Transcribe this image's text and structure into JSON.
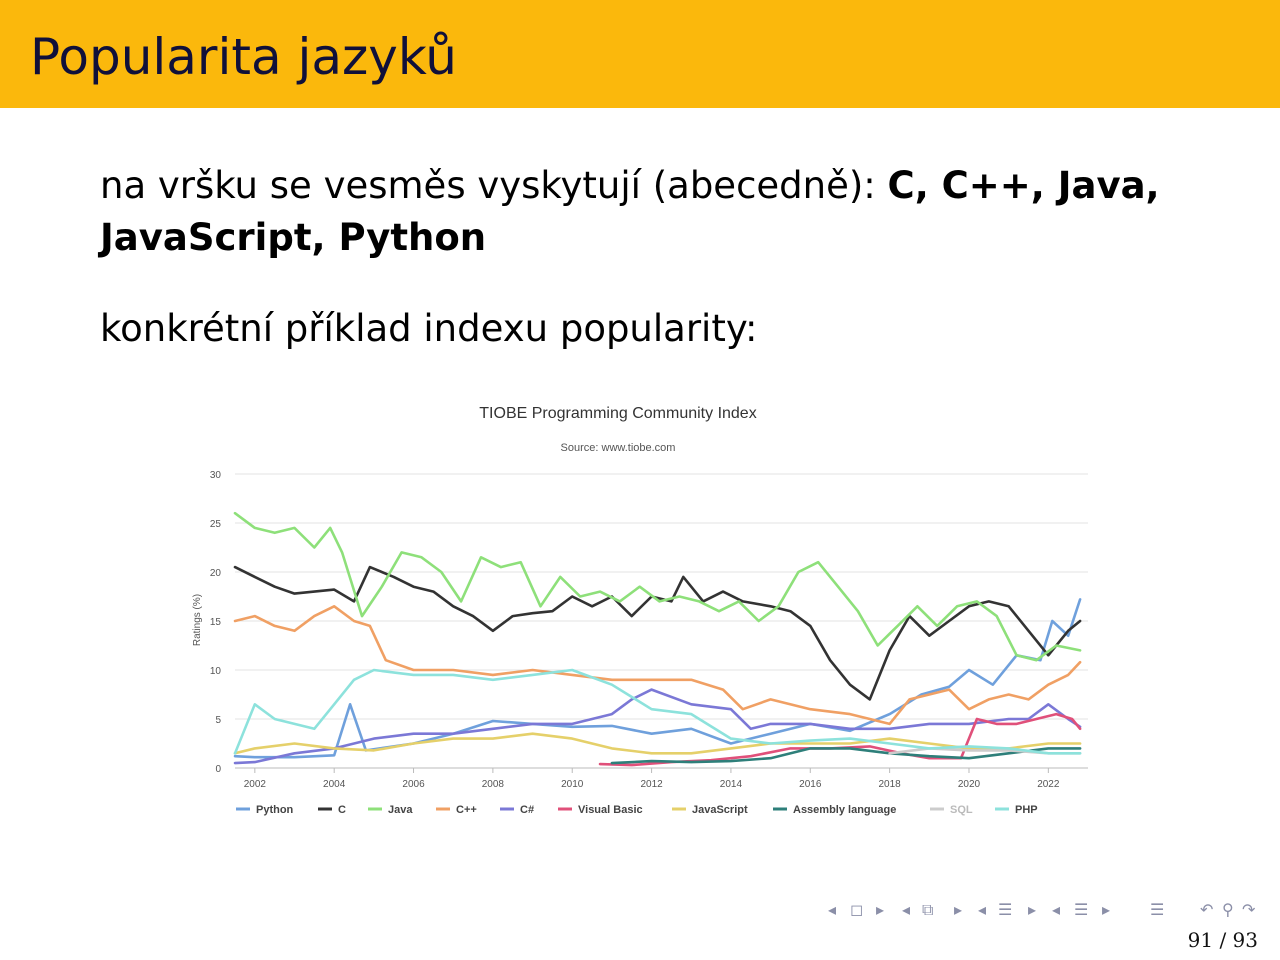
{
  "slide": {
    "title": "Popularita jazyků",
    "para1_plain": "na vršku se vesměs vyskytují (abecedně): ",
    "para1_bold1": "C, C++, Java,",
    "para1_bold2": "JavaScript, Python",
    "para2": "konkrétní příklad indexu popularity:",
    "page": "91 / 93",
    "header_color": "#fbb80c"
  },
  "navigation": {
    "icons": [
      "nav-prev-icon",
      "frame-icon",
      "nav-next-icon",
      "nav-prev-icon",
      "subsection-icon",
      "nav-next-icon",
      "nav-prev-icon",
      "section-icon",
      "nav-next-icon",
      "nav-prev-icon",
      "document-icon",
      "nav-next-icon",
      "toc-icon",
      "back-icon",
      "search-icon",
      "forward-icon"
    ]
  },
  "chart_data": {
    "type": "line",
    "title": "TIOBE Programming Community Index",
    "subtitle": "Source: www.tiobe.com",
    "ylabel": "Ratings (%)",
    "xlabel": "",
    "xlim": [
      2001.5,
      2023.0
    ],
    "ylim": [
      0,
      30
    ],
    "yticks": [
      0,
      5,
      10,
      15,
      20,
      25,
      30
    ],
    "xticks": [
      2002,
      2004,
      2006,
      2008,
      2010,
      2012,
      2014,
      2016,
      2018,
      2020,
      2022
    ],
    "grid": true,
    "legend": "bottom",
    "series": [
      {
        "name": "Python",
        "color": "#6fa0dc",
        "points": [
          [
            2001.5,
            1.2
          ],
          [
            2002,
            1.1
          ],
          [
            2003,
            1.1
          ],
          [
            2004,
            1.3
          ],
          [
            2004.4,
            6.5
          ],
          [
            2004.8,
            1.8
          ],
          [
            2006,
            2.5
          ],
          [
            2007,
            3.5
          ],
          [
            2008,
            4.8
          ],
          [
            2009,
            4.5
          ],
          [
            2010,
            4.2
          ],
          [
            2011,
            4.3
          ],
          [
            2012,
            3.5
          ],
          [
            2013,
            4.0
          ],
          [
            2014,
            2.5
          ],
          [
            2015,
            3.5
          ],
          [
            2016,
            4.5
          ],
          [
            2017,
            3.8
          ],
          [
            2018,
            5.5
          ],
          [
            2018.8,
            7.5
          ],
          [
            2019.5,
            8.3
          ],
          [
            2020,
            10.0
          ],
          [
            2020.6,
            8.5
          ],
          [
            2021.2,
            11.5
          ],
          [
            2021.8,
            11.0
          ],
          [
            2022.1,
            15.0
          ],
          [
            2022.5,
            13.5
          ],
          [
            2022.8,
            17.2
          ]
        ]
      },
      {
        "name": "C",
        "color": "#333333",
        "points": [
          [
            2001.5,
            20.5
          ],
          [
            2002,
            19.5
          ],
          [
            2002.5,
            18.5
          ],
          [
            2003,
            17.8
          ],
          [
            2003.5,
            18.0
          ],
          [
            2004,
            18.2
          ],
          [
            2004.5,
            17.0
          ],
          [
            2004.9,
            20.5
          ],
          [
            2005.5,
            19.5
          ],
          [
            2006,
            18.5
          ],
          [
            2006.5,
            18.0
          ],
          [
            2007,
            16.5
          ],
          [
            2007.5,
            15.5
          ],
          [
            2008,
            14.0
          ],
          [
            2008.5,
            15.5
          ],
          [
            2009,
            15.8
          ],
          [
            2009.5,
            16.0
          ],
          [
            2010,
            17.5
          ],
          [
            2010.5,
            16.5
          ],
          [
            2011,
            17.5
          ],
          [
            2011.5,
            15.5
          ],
          [
            2012,
            17.5
          ],
          [
            2012.5,
            17.0
          ],
          [
            2012.8,
            19.5
          ],
          [
            2013.3,
            17.0
          ],
          [
            2013.8,
            18.0
          ],
          [
            2014.3,
            17.0
          ],
          [
            2015,
            16.5
          ],
          [
            2015.5,
            16.0
          ],
          [
            2016,
            14.5
          ],
          [
            2016.5,
            11.0
          ],
          [
            2017,
            8.5
          ],
          [
            2017.5,
            7.0
          ],
          [
            2018,
            12.0
          ],
          [
            2018.5,
            15.5
          ],
          [
            2019,
            13.5
          ],
          [
            2019.5,
            15.0
          ],
          [
            2020,
            16.5
          ],
          [
            2020.5,
            17.0
          ],
          [
            2021,
            16.5
          ],
          [
            2021.5,
            14.0
          ],
          [
            2022,
            11.5
          ],
          [
            2022.5,
            14.0
          ],
          [
            2022.8,
            15.0
          ]
        ]
      },
      {
        "name": "Java",
        "color": "#8ee07a",
        "points": [
          [
            2001.5,
            26.0
          ],
          [
            2002,
            24.5
          ],
          [
            2002.5,
            24.0
          ],
          [
            2003,
            24.5
          ],
          [
            2003.5,
            22.5
          ],
          [
            2003.9,
            24.5
          ],
          [
            2004.2,
            22.0
          ],
          [
            2004.7,
            15.5
          ],
          [
            2005.2,
            18.5
          ],
          [
            2005.7,
            22.0
          ],
          [
            2006.2,
            21.5
          ],
          [
            2006.7,
            20.0
          ],
          [
            2007.2,
            17.0
          ],
          [
            2007.7,
            21.5
          ],
          [
            2008.2,
            20.5
          ],
          [
            2008.7,
            21.0
          ],
          [
            2009.2,
            16.5
          ],
          [
            2009.7,
            19.5
          ],
          [
            2010.2,
            17.5
          ],
          [
            2010.7,
            18.0
          ],
          [
            2011.2,
            17.0
          ],
          [
            2011.7,
            18.5
          ],
          [
            2012.2,
            17.0
          ],
          [
            2012.7,
            17.5
          ],
          [
            2013.2,
            17.0
          ],
          [
            2013.7,
            16.0
          ],
          [
            2014.2,
            17.0
          ],
          [
            2014.7,
            15.0
          ],
          [
            2015.2,
            16.5
          ],
          [
            2015.7,
            20.0
          ],
          [
            2016.2,
            21.0
          ],
          [
            2016.7,
            18.5
          ],
          [
            2017.2,
            16.0
          ],
          [
            2017.7,
            12.5
          ],
          [
            2018.2,
            14.5
          ],
          [
            2018.7,
            16.5
          ],
          [
            2019.2,
            14.5
          ],
          [
            2019.7,
            16.5
          ],
          [
            2020.2,
            17.0
          ],
          [
            2020.7,
            15.5
          ],
          [
            2021.2,
            11.5
          ],
          [
            2021.7,
            11.0
          ],
          [
            2022.2,
            12.5
          ],
          [
            2022.8,
            12.0
          ]
        ]
      },
      {
        "name": "C++",
        "color": "#f0a064",
        "points": [
          [
            2001.5,
            15.0
          ],
          [
            2002,
            15.5
          ],
          [
            2002.5,
            14.5
          ],
          [
            2003,
            14.0
          ],
          [
            2003.5,
            15.5
          ],
          [
            2004,
            16.5
          ],
          [
            2004.5,
            15.0
          ],
          [
            2004.9,
            14.5
          ],
          [
            2005.3,
            11.0
          ],
          [
            2006,
            10.0
          ],
          [
            2007,
            10.0
          ],
          [
            2008,
            9.5
          ],
          [
            2009,
            10.0
          ],
          [
            2010,
            9.5
          ],
          [
            2011,
            9.0
          ],
          [
            2012,
            9.0
          ],
          [
            2013,
            9.0
          ],
          [
            2013.8,
            8.0
          ],
          [
            2014.3,
            6.0
          ],
          [
            2015,
            7.0
          ],
          [
            2016,
            6.0
          ],
          [
            2017,
            5.5
          ],
          [
            2018,
            4.5
          ],
          [
            2018.5,
            7.0
          ],
          [
            2019,
            7.5
          ],
          [
            2019.5,
            8.0
          ],
          [
            2020,
            6.0
          ],
          [
            2020.5,
            7.0
          ],
          [
            2021,
            7.5
          ],
          [
            2021.5,
            7.0
          ],
          [
            2022,
            8.5
          ],
          [
            2022.5,
            9.5
          ],
          [
            2022.8,
            10.8
          ]
        ]
      },
      {
        "name": "C#",
        "color": "#7b78d6",
        "points": [
          [
            2001.5,
            0.5
          ],
          [
            2002,
            0.6
          ],
          [
            2003,
            1.5
          ],
          [
            2004,
            2.0
          ],
          [
            2005,
            3.0
          ],
          [
            2006,
            3.5
          ],
          [
            2007,
            3.5
          ],
          [
            2008,
            4.0
          ],
          [
            2009,
            4.5
          ],
          [
            2010,
            4.5
          ],
          [
            2011,
            5.5
          ],
          [
            2011.5,
            7.0
          ],
          [
            2012,
            8.0
          ],
          [
            2013,
            6.5
          ],
          [
            2014,
            6.0
          ],
          [
            2014.5,
            4.0
          ],
          [
            2015,
            4.5
          ],
          [
            2016,
            4.5
          ],
          [
            2017,
            4.0
          ],
          [
            2018,
            4.0
          ],
          [
            2019,
            4.5
          ],
          [
            2020,
            4.5
          ],
          [
            2021,
            5.0
          ],
          [
            2021.5,
            5.0
          ],
          [
            2022,
            6.5
          ],
          [
            2022.5,
            5.0
          ],
          [
            2022.8,
            4.2
          ]
        ]
      },
      {
        "name": "Visual Basic",
        "color": "#e0507a",
        "points": [
          [
            2010.7,
            0.4
          ],
          [
            2011.5,
            0.3
          ],
          [
            2012.5,
            0.6
          ],
          [
            2013.5,
            0.8
          ],
          [
            2014.5,
            1.2
          ],
          [
            2015.5,
            2.0
          ],
          [
            2016.5,
            2.0
          ],
          [
            2017.5,
            2.2
          ],
          [
            2018.3,
            1.5
          ],
          [
            2019,
            1.0
          ],
          [
            2019.8,
            1.0
          ],
          [
            2020.2,
            5.0
          ],
          [
            2020.7,
            4.5
          ],
          [
            2021.2,
            4.5
          ],
          [
            2021.7,
            5.0
          ],
          [
            2022.2,
            5.5
          ],
          [
            2022.6,
            5.0
          ],
          [
            2022.8,
            4.0
          ]
        ]
      },
      {
        "name": "JavaScript",
        "color": "#e5d06a",
        "points": [
          [
            2001.5,
            1.5
          ],
          [
            2002,
            2.0
          ],
          [
            2003,
            2.5
          ],
          [
            2004,
            2.0
          ],
          [
            2005,
            1.8
          ],
          [
            2006,
            2.5
          ],
          [
            2007,
            3.0
          ],
          [
            2008,
            3.0
          ],
          [
            2009,
            3.5
          ],
          [
            2010,
            3.0
          ],
          [
            2011,
            2.0
          ],
          [
            2012,
            1.5
          ],
          [
            2013,
            1.5
          ],
          [
            2014,
            2.0
          ],
          [
            2015,
            2.5
          ],
          [
            2016,
            2.5
          ],
          [
            2017,
            2.5
          ],
          [
            2018,
            3.0
          ],
          [
            2019,
            2.5
          ],
          [
            2020,
            2.0
          ],
          [
            2021,
            2.0
          ],
          [
            2022,
            2.5
          ],
          [
            2022.8,
            2.5
          ]
        ]
      },
      {
        "name": "Assembly language",
        "color": "#2e7f7a",
        "points": [
          [
            2011,
            0.5
          ],
          [
            2012,
            0.7
          ],
          [
            2013,
            0.6
          ],
          [
            2014,
            0.7
          ],
          [
            2015,
            1.0
          ],
          [
            2016,
            2.0
          ],
          [
            2017,
            2.0
          ],
          [
            2018,
            1.5
          ],
          [
            2019,
            1.2
          ],
          [
            2020,
            1.0
          ],
          [
            2021,
            1.5
          ],
          [
            2022,
            2.0
          ],
          [
            2022.8,
            2.0
          ]
        ]
      },
      {
        "name": "SQL",
        "color": "#cccccc",
        "points": [
          [
            2018,
            1.5
          ],
          [
            2019,
            2.0
          ],
          [
            2020,
            1.8
          ],
          [
            2021,
            1.8
          ],
          [
            2022,
            1.5
          ],
          [
            2022.8,
            1.5
          ]
        ]
      },
      {
        "name": "PHP",
        "color": "#8de2dc",
        "points": [
          [
            2001.5,
            1.5
          ],
          [
            2002,
            6.5
          ],
          [
            2002.5,
            5.0
          ],
          [
            2003,
            4.5
          ],
          [
            2003.5,
            4.0
          ],
          [
            2004,
            6.5
          ],
          [
            2004.5,
            9.0
          ],
          [
            2005,
            10.0
          ],
          [
            2006,
            9.5
          ],
          [
            2007,
            9.5
          ],
          [
            2008,
            9.0
          ],
          [
            2009,
            9.5
          ],
          [
            2010,
            10.0
          ],
          [
            2011,
            8.5
          ],
          [
            2012,
            6.0
          ],
          [
            2013,
            5.5
          ],
          [
            2014,
            3.0
          ],
          [
            2015,
            2.5
          ],
          [
            2016,
            2.8
          ],
          [
            2017,
            3.0
          ],
          [
            2018,
            2.5
          ],
          [
            2019,
            2.0
          ],
          [
            2020,
            2.2
          ],
          [
            2021,
            2.0
          ],
          [
            2022,
            1.5
          ],
          [
            2022.8,
            1.5
          ]
        ]
      }
    ]
  }
}
